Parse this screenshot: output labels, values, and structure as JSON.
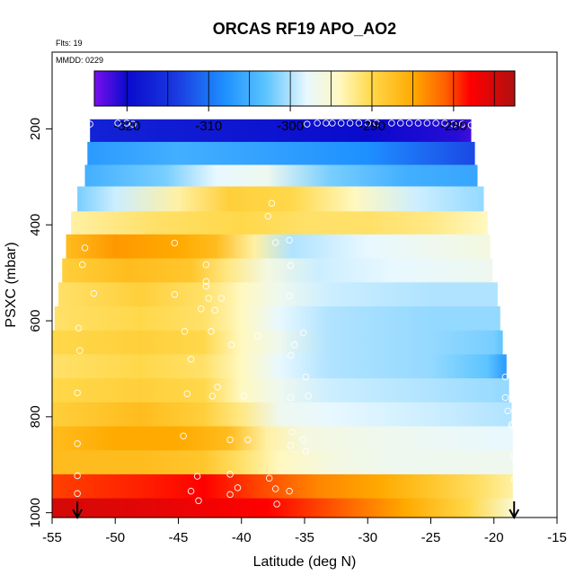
{
  "chart_data": {
    "type": "heatmap",
    "title": "ORCAS RF19 APO_AO2",
    "annotations": [
      "Flts: 19",
      "MMDD: 0229"
    ],
    "xlabel": "Latitude (deg N)",
    "ylabel": "PSXC (mbar)",
    "xlim": [
      -55,
      -15
    ],
    "ylim": [
      1010,
      40
    ],
    "x_ticks": [
      -55,
      -50,
      -45,
      -40,
      -35,
      -30,
      -25,
      -20,
      -15
    ],
    "x_tick_labels": [
      "-55",
      "-50",
      "-45",
      "-40",
      "-35",
      "-30",
      "-25",
      "-20",
      "-15"
    ],
    "y_ticks": [
      200,
      400,
      600,
      800,
      1000
    ],
    "y_tick_labels": [
      "200",
      "400",
      "600",
      "800",
      "1000"
    ],
    "colorbar": {
      "range": [
        -324,
        -272.5
      ],
      "ticks": [
        -320,
        -310,
        -300,
        -290,
        -280
      ],
      "tick_labels": [
        "-320",
        "-310",
        "-300",
        "-290",
        "-280"
      ],
      "minor_ticks": [
        -320,
        -315,
        -310,
        -305,
        -300,
        -295,
        -290,
        -285,
        -280,
        -275
      ],
      "colors": [
        "#7a10ee",
        "#0a0acc",
        "#1a3ae0",
        "#1e90ff",
        "#5cc4ff",
        "#e8f8ff",
        "#fff8c0",
        "#ffd84a",
        "#ffaa00",
        "#ff6000",
        "#ff0000",
        "#b01010"
      ],
      "color_stops": [
        -324,
        -320,
        -314,
        -308,
        -303,
        -298,
        -294,
        -290,
        -285,
        -281,
        -278,
        -272.5
      ]
    },
    "bands": [
      {
        "p_top": 180,
        "p_bot": 227,
        "x_min": -52.0,
        "x_max": -21.8,
        "nodes": [
          [
            -52.0,
            -317
          ],
          [
            -40,
            -318.5
          ],
          [
            -30,
            -320
          ],
          [
            -23,
            -321
          ],
          [
            -21.8,
            -322
          ]
        ]
      },
      {
        "p_top": 227,
        "p_bot": 275,
        "x_min": -52.2,
        "x_max": -21.5,
        "nodes": [
          [
            -52.2,
            -307
          ],
          [
            -45,
            -305
          ],
          [
            -40,
            -306
          ],
          [
            -30,
            -308
          ],
          [
            -25,
            -311
          ],
          [
            -21.5,
            -313
          ]
        ]
      },
      {
        "p_top": 275,
        "p_bot": 320,
        "x_min": -52.4,
        "x_max": -21.3,
        "nodes": [
          [
            -52.4,
            -305
          ],
          [
            -46,
            -302
          ],
          [
            -42,
            -298
          ],
          [
            -38,
            -297
          ],
          [
            -33,
            -302
          ],
          [
            -27,
            -305
          ],
          [
            -21.3,
            -306
          ]
        ]
      },
      {
        "p_top": 320,
        "p_bot": 372,
        "x_min": -53.0,
        "x_max": -20.8,
        "nodes": [
          [
            -53.0,
            -302
          ],
          [
            -50,
            -299
          ],
          [
            -45,
            -293
          ],
          [
            -41,
            -289
          ],
          [
            -36,
            -290
          ],
          [
            -31,
            -294
          ],
          [
            -26,
            -299
          ],
          [
            -20.8,
            -301
          ]
        ]
      },
      {
        "p_top": 372,
        "p_bot": 420,
        "x_min": -53.5,
        "x_max": -20.5,
        "nodes": [
          [
            -53.5,
            -293
          ],
          [
            -47,
            -291
          ],
          [
            -40,
            -290
          ],
          [
            -35,
            -291
          ],
          [
            -30,
            -291
          ],
          [
            -25,
            -292
          ],
          [
            -20.5,
            -294
          ]
        ]
      },
      {
        "p_top": 420,
        "p_bot": 470,
        "x_min": -53.9,
        "x_max": -20.3,
        "nodes": [
          [
            -53.9,
            -287
          ],
          [
            -50,
            -284
          ],
          [
            -45,
            -285
          ],
          [
            -42,
            -287
          ],
          [
            -39,
            -293
          ],
          [
            -36,
            -300
          ],
          [
            -30,
            -298
          ],
          [
            -25,
            -297
          ],
          [
            -20.3,
            -296
          ]
        ]
      },
      {
        "p_top": 470,
        "p_bot": 520,
        "x_min": -54.2,
        "x_max": -20.1,
        "nodes": [
          [
            -54.2,
            -289
          ],
          [
            -49,
            -287
          ],
          [
            -44,
            -288
          ],
          [
            -41,
            -292
          ],
          [
            -38,
            -296
          ],
          [
            -34,
            -299
          ],
          [
            -28,
            -298
          ],
          [
            -20.1,
            -297
          ]
        ]
      },
      {
        "p_top": 520,
        "p_bot": 570,
        "x_min": -54.5,
        "x_max": -19.7,
        "nodes": [
          [
            -54.5,
            -291
          ],
          [
            -48,
            -289
          ],
          [
            -43,
            -291
          ],
          [
            -40,
            -294
          ],
          [
            -37,
            -297
          ],
          [
            -33,
            -299
          ],
          [
            -25,
            -300
          ],
          [
            -19.7,
            -300
          ]
        ]
      },
      {
        "p_top": 570,
        "p_bot": 620,
        "x_min": -54.8,
        "x_max": -19.5,
        "nodes": [
          [
            -54.8,
            -291
          ],
          [
            -48,
            -290
          ],
          [
            -43,
            -291
          ],
          [
            -40,
            -294
          ],
          [
            -37,
            -298
          ],
          [
            -33,
            -300
          ],
          [
            -25,
            -301
          ],
          [
            -19.5,
            -301
          ]
        ]
      },
      {
        "p_top": 620,
        "p_bot": 670,
        "x_min": -55.0,
        "x_max": -19.3,
        "nodes": [
          [
            -55.0,
            -290
          ],
          [
            -48,
            -289
          ],
          [
            -43,
            -290
          ],
          [
            -40,
            -294
          ],
          [
            -37,
            -297
          ],
          [
            -33,
            -300
          ],
          [
            -25,
            -301
          ],
          [
            -20,
            -302
          ],
          [
            -19.3,
            -303
          ]
        ]
      },
      {
        "p_top": 670,
        "p_bot": 720,
        "x_min": -55.0,
        "x_max": -19.0,
        "nodes": [
          [
            -55.0,
            -291
          ],
          [
            -48,
            -290
          ],
          [
            -43,
            -291
          ],
          [
            -40,
            -294
          ],
          [
            -37,
            -298
          ],
          [
            -33,
            -300
          ],
          [
            -25,
            -301
          ],
          [
            -20.5,
            -303
          ],
          [
            -19.0,
            -307
          ]
        ]
      },
      {
        "p_top": 720,
        "p_bot": 770,
        "x_min": -55.0,
        "x_max": -18.8,
        "nodes": [
          [
            -55.0,
            -290
          ],
          [
            -48,
            -289
          ],
          [
            -43,
            -290
          ],
          [
            -40,
            -294
          ],
          [
            -37,
            -297
          ],
          [
            -33,
            -299
          ],
          [
            -25,
            -300
          ],
          [
            -18.8,
            -301
          ]
        ]
      },
      {
        "p_top": 770,
        "p_bot": 820,
        "x_min": -55.0,
        "x_max": -18.6,
        "nodes": [
          [
            -55.0,
            -289
          ],
          [
            -48,
            -287
          ],
          [
            -43,
            -289
          ],
          [
            -40,
            -292
          ],
          [
            -37,
            -297
          ],
          [
            -33,
            -298
          ],
          [
            -25,
            -299
          ],
          [
            -18.6,
            -300
          ]
        ]
      },
      {
        "p_top": 820,
        "p_bot": 870,
        "x_min": -55.0,
        "x_max": -18.5,
        "nodes": [
          [
            -55.0,
            -287
          ],
          [
            -50,
            -285
          ],
          [
            -45,
            -285
          ],
          [
            -41,
            -287
          ],
          [
            -38,
            -293
          ],
          [
            -35,
            -296
          ],
          [
            -28,
            -297
          ],
          [
            -18.5,
            -298
          ]
        ]
      },
      {
        "p_top": 870,
        "p_bot": 920,
        "x_min": -55.0,
        "x_max": -18.5,
        "nodes": [
          [
            -55.0,
            -287
          ],
          [
            -48,
            -287
          ],
          [
            -43,
            -288
          ],
          [
            -40,
            -291
          ],
          [
            -37,
            -294
          ],
          [
            -33,
            -296
          ],
          [
            -28,
            -297
          ],
          [
            -18.5,
            -297
          ]
        ]
      },
      {
        "p_top": 920,
        "p_bot": 970,
        "x_min": -55.0,
        "x_max": -18.5,
        "nodes": [
          [
            -55.0,
            -280
          ],
          [
            -48,
            -279
          ],
          [
            -43,
            -278
          ],
          [
            -39,
            -280
          ],
          [
            -34,
            -283
          ],
          [
            -29,
            -285
          ],
          [
            -25,
            -288
          ],
          [
            -21,
            -291
          ],
          [
            -18.5,
            -293
          ]
        ]
      },
      {
        "p_top": 970,
        "p_bot": 1015,
        "x_min": -55.0,
        "x_max": -18.5,
        "nodes": [
          [
            -55.0,
            -275
          ],
          [
            -48,
            -276
          ],
          [
            -43,
            -277
          ],
          [
            -38,
            -278
          ],
          [
            -32,
            -281
          ],
          [
            -27,
            -285
          ],
          [
            -22,
            -290
          ],
          [
            -18.5,
            -295
          ]
        ]
      }
    ],
    "points": [
      [
        -52.0,
        190
      ],
      [
        -49.8,
        188
      ],
      [
        -49.1,
        188
      ],
      [
        -48.6,
        190
      ],
      [
        -34.8,
        190
      ],
      [
        -34.0,
        188
      ],
      [
        -33.3,
        188
      ],
      [
        -32.8,
        188
      ],
      [
        -32.1,
        188
      ],
      [
        -31.4,
        188
      ],
      [
        -30.7,
        188
      ],
      [
        -30.0,
        188
      ],
      [
        -29.3,
        188
      ],
      [
        -28.1,
        188
      ],
      [
        -27.4,
        188
      ],
      [
        -26.7,
        188
      ],
      [
        -26.0,
        188
      ],
      [
        -25.3,
        188
      ],
      [
        -24.6,
        188
      ],
      [
        -23.9,
        188
      ],
      [
        -23.2,
        190
      ],
      [
        -22.5,
        190
      ],
      [
        -21.8,
        192
      ],
      [
        -37.6,
        355
      ],
      [
        -37.9,
        382
      ],
      [
        -36.2,
        432
      ],
      [
        -37.3,
        437
      ],
      [
        -45.3,
        438
      ],
      [
        -52.4,
        448
      ],
      [
        -52.6,
        483
      ],
      [
        -42.8,
        483
      ],
      [
        -36.1,
        485
      ],
      [
        -42.8,
        518
      ],
      [
        -42.8,
        528
      ],
      [
        -51.7,
        543
      ],
      [
        -45.3,
        545
      ],
      [
        -42.6,
        553
      ],
      [
        -41.6,
        553
      ],
      [
        -36.2,
        548
      ],
      [
        -43.2,
        575
      ],
      [
        -42.1,
        578
      ],
      [
        -52.9,
        615
      ],
      [
        -44.5,
        622
      ],
      [
        -42.4,
        622
      ],
      [
        -38.7,
        632
      ],
      [
        -35.1,
        625
      ],
      [
        -35.8,
        650
      ],
      [
        -40.8,
        650
      ],
      [
        -52.8,
        662
      ],
      [
        -36.1,
        672
      ],
      [
        -44.0,
        680
      ],
      [
        -34.9,
        717
      ],
      [
        -19.1,
        717
      ],
      [
        -41.9,
        738
      ],
      [
        -44.3,
        752
      ],
      [
        -42.3,
        757
      ],
      [
        -39.8,
        757
      ],
      [
        -34.7,
        757
      ],
      [
        -36.1,
        760
      ],
      [
        -19.1,
        760
      ],
      [
        -53.0,
        750
      ],
      [
        -18.9,
        788
      ],
      [
        -18.6,
        816
      ],
      [
        -18.5,
        818
      ],
      [
        -44.6,
        840
      ],
      [
        -40.9,
        848
      ],
      [
        -39.5,
        848
      ],
      [
        -35.1,
        848
      ],
      [
        -36.1,
        860
      ],
      [
        -34.9,
        872
      ],
      [
        -53.0,
        856
      ],
      [
        -36.0,
        832
      ],
      [
        -18.4,
        882
      ],
      [
        -37.8,
        928
      ],
      [
        -43.5,
        924
      ],
      [
        -40.9,
        920
      ],
      [
        -44.0,
        955
      ],
      [
        -40.9,
        962
      ],
      [
        -40.3,
        948
      ],
      [
        -37.3,
        950
      ],
      [
        -36.2,
        955
      ],
      [
        -43.4,
        975
      ],
      [
        -37.2,
        982
      ],
      [
        -53.0,
        923
      ],
      [
        -53.0,
        960
      ],
      [
        -18.4,
        932
      ]
    ],
    "arrows": [
      -53.0,
      -18.4
    ]
  }
}
